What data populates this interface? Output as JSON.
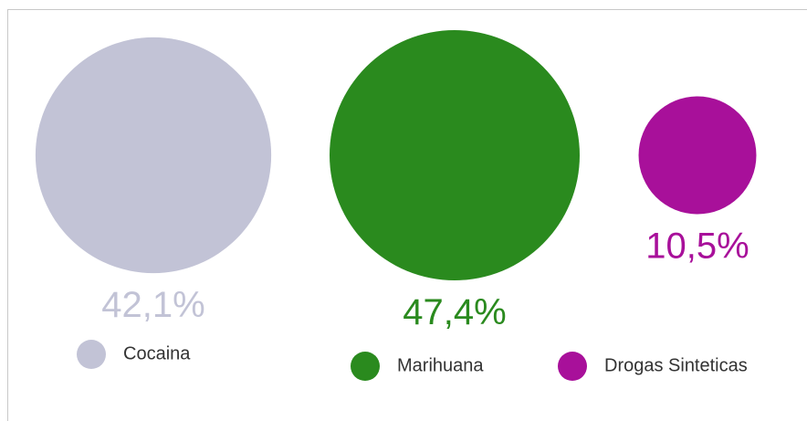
{
  "chart_data": {
    "type": "bubble",
    "categories": [
      "Cocaina",
      "Marihuana",
      "Drogas Sinteticas"
    ],
    "values": [
      42.1,
      47.4,
      10.5
    ],
    "value_labels": [
      "42,1%",
      "47,4%",
      "10,5%"
    ],
    "colors": [
      "#c2c3d6",
      "#2a8a1e",
      "#a8109a"
    ]
  }
}
